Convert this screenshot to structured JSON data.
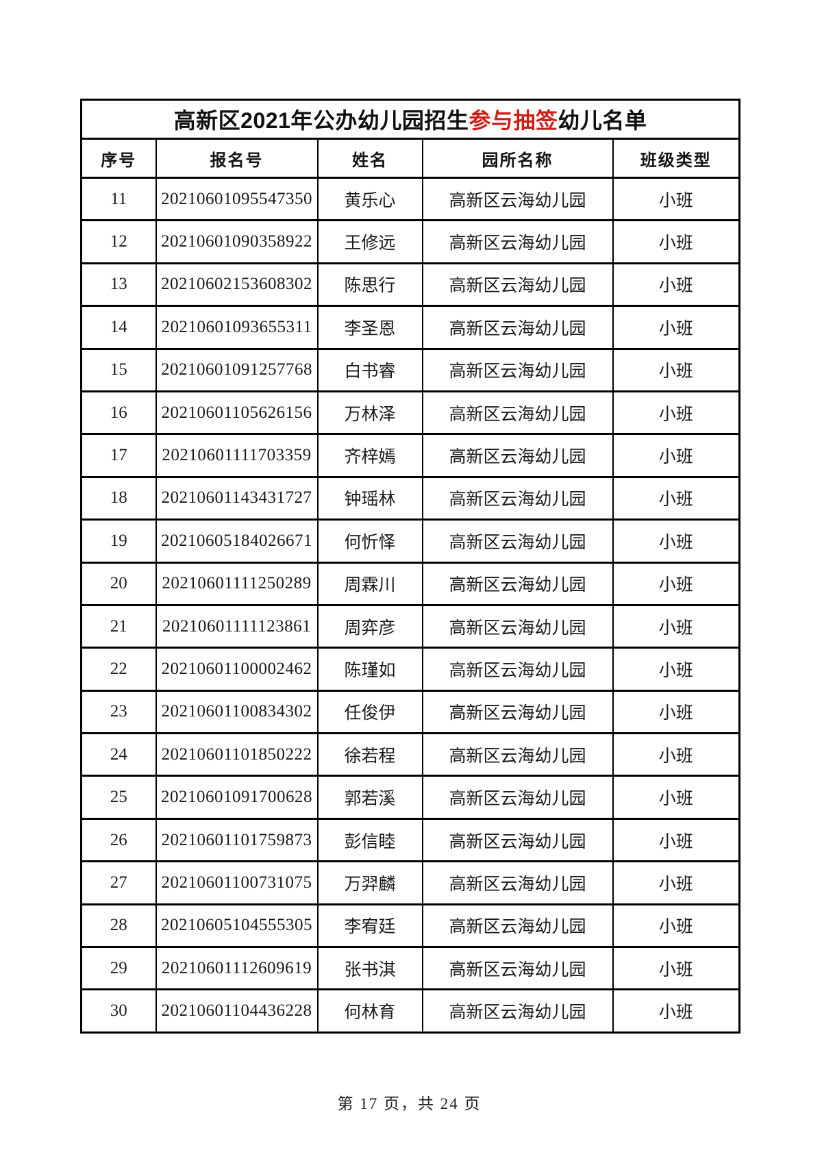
{
  "page": {
    "title": {
      "prefix": "高新区2021年公办幼儿园招生",
      "highlight": "参与抽签",
      "suffix": "幼儿名单"
    },
    "table": {
      "headers": [
        "序号",
        "报名号",
        "姓名",
        "园所名称",
        "班级类型"
      ],
      "rows": [
        [
          "11",
          "20210601095547350",
          "黄乐心",
          "高新区云海幼儿园",
          "小班"
        ],
        [
          "12",
          "20210601090358922",
          "王修远",
          "高新区云海幼儿园",
          "小班"
        ],
        [
          "13",
          "20210602153608302",
          "陈思行",
          "高新区云海幼儿园",
          "小班"
        ],
        [
          "14",
          "20210601093655311",
          "李圣恩",
          "高新区云海幼儿园",
          "小班"
        ],
        [
          "15",
          "20210601091257768",
          "白书睿",
          "高新区云海幼儿园",
          "小班"
        ],
        [
          "16",
          "20210601105626156",
          "万林泽",
          "高新区云海幼儿园",
          "小班"
        ],
        [
          "17",
          "20210601111703359",
          "齐梓嫣",
          "高新区云海幼儿园",
          "小班"
        ],
        [
          "18",
          "20210601143431727",
          "钟瑶林",
          "高新区云海幼儿园",
          "小班"
        ],
        [
          "19",
          "20210605184026671",
          "何忻怿",
          "高新区云海幼儿园",
          "小班"
        ],
        [
          "20",
          "20210601111250289",
          "周霖川",
          "高新区云海幼儿园",
          "小班"
        ],
        [
          "21",
          "20210601111123861",
          "周弈彦",
          "高新区云海幼儿园",
          "小班"
        ],
        [
          "22",
          "20210601100002462",
          "陈瑾如",
          "高新区云海幼儿园",
          "小班"
        ],
        [
          "23",
          "20210601100834302",
          "任俊伊",
          "高新区云海幼儿园",
          "小班"
        ],
        [
          "24",
          "20210601101850222",
          "徐若程",
          "高新区云海幼儿园",
          "小班"
        ],
        [
          "25",
          "20210601091700628",
          "郭若溪",
          "高新区云海幼儿园",
          "小班"
        ],
        [
          "26",
          "20210601101759873",
          "彭信睦",
          "高新区云海幼儿园",
          "小班"
        ],
        [
          "27",
          "20210601100731075",
          "万羿麟",
          "高新区云海幼儿园",
          "小班"
        ],
        [
          "28",
          "20210605104555305",
          "李宥廷",
          "高新区云海幼儿园",
          "小班"
        ],
        [
          "29",
          "20210601112609619",
          "张书淇",
          "高新区云海幼儿园",
          "小班"
        ],
        [
          "30",
          "20210601104436228",
          "何林育",
          "高新区云海幼儿园",
          "小班"
        ]
      ]
    },
    "footer": "第 17 页，共 24 页",
    "colors": {
      "highlight_red": "#cc2017",
      "text": "#1a1a1a",
      "border": "#000000"
    }
  }
}
